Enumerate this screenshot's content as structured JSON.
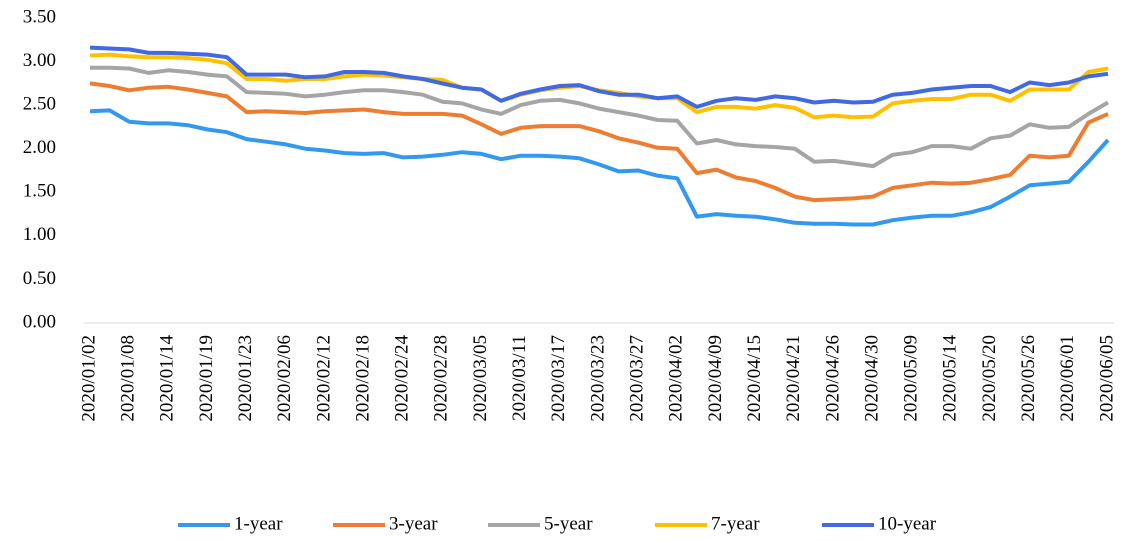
{
  "chart_data": {
    "type": "line",
    "categories": [
      "2020/01/02",
      null,
      "2020/01/08",
      null,
      "2020/01/14",
      null,
      "2020/01/19",
      null,
      "2020/01/23",
      null,
      "2020/02/06",
      null,
      "2020/02/12",
      null,
      "2020/02/18",
      null,
      "2020/02/24",
      null,
      "2020/02/28",
      null,
      "2020/03/05",
      null,
      "2020/03/11",
      null,
      "2020/03/17",
      null,
      "2020/03/23",
      null,
      "2020/03/27",
      null,
      "2020/04/02",
      null,
      "2020/04/09",
      null,
      "2020/04/15",
      null,
      "2020/04/21",
      null,
      "2020/04/26",
      null,
      "2020/04/30",
      null,
      "2020/05/09",
      null,
      "2020/05/14",
      null,
      "2020/05/20",
      null,
      "2020/05/26",
      null,
      "2020/06/01",
      null,
      "2020/06/05"
    ],
    "series": [
      {
        "name": "1-year",
        "color": "#3399f0",
        "values": [
          2.43,
          2.44,
          2.31,
          2.29,
          2.29,
          2.27,
          2.22,
          2.19,
          2.11,
          2.08,
          2.05,
          2.0,
          1.98,
          1.95,
          1.94,
          1.95,
          1.9,
          1.91,
          1.93,
          1.96,
          1.94,
          1.88,
          1.92,
          1.92,
          1.91,
          1.89,
          1.82,
          1.74,
          1.75,
          1.69,
          1.66,
          1.22,
          1.25,
          1.23,
          1.22,
          1.19,
          1.15,
          1.14,
          1.14,
          1.13,
          1.13,
          1.18,
          1.21,
          1.23,
          1.23,
          1.27,
          1.33,
          1.45,
          1.58,
          1.6,
          1.62,
          1.85,
          2.1
        ]
      },
      {
        "name": "3-year",
        "color": "#ed7d31",
        "values": [
          2.75,
          2.72,
          2.67,
          2.7,
          2.71,
          2.68,
          2.64,
          2.6,
          2.42,
          2.43,
          2.42,
          2.41,
          2.43,
          2.44,
          2.45,
          2.42,
          2.4,
          2.4,
          2.4,
          2.38,
          2.28,
          2.17,
          2.24,
          2.26,
          2.26,
          2.26,
          2.2,
          2.12,
          2.07,
          2.01,
          2.0,
          1.72,
          1.76,
          1.67,
          1.63,
          1.55,
          1.45,
          1.41,
          1.42,
          1.43,
          1.45,
          1.55,
          1.58,
          1.61,
          1.6,
          1.61,
          1.65,
          1.7,
          1.92,
          1.9,
          1.92,
          2.3,
          2.4
        ]
      },
      {
        "name": "5-year",
        "color": "#a5a5a5",
        "values": [
          2.93,
          2.93,
          2.92,
          2.87,
          2.9,
          2.88,
          2.85,
          2.83,
          2.65,
          2.64,
          2.63,
          2.6,
          2.62,
          2.65,
          2.67,
          2.67,
          2.65,
          2.62,
          2.54,
          2.52,
          2.45,
          2.4,
          2.5,
          2.55,
          2.56,
          2.52,
          2.46,
          2.42,
          2.38,
          2.33,
          2.32,
          2.06,
          2.1,
          2.05,
          2.03,
          2.02,
          2.0,
          1.85,
          1.86,
          1.83,
          1.8,
          1.93,
          1.96,
          2.03,
          2.03,
          2.0,
          2.12,
          2.15,
          2.28,
          2.24,
          2.25,
          2.4,
          2.53
        ]
      },
      {
        "name": "7-year",
        "color": "#ffc000",
        "values": [
          3.07,
          3.08,
          3.06,
          3.05,
          3.05,
          3.04,
          3.02,
          2.98,
          2.8,
          2.8,
          2.78,
          2.8,
          2.8,
          2.83,
          2.85,
          2.84,
          2.82,
          2.8,
          2.79,
          2.7,
          2.68,
          2.55,
          2.62,
          2.67,
          2.7,
          2.72,
          2.67,
          2.64,
          2.6,
          2.58,
          2.58,
          2.42,
          2.48,
          2.48,
          2.46,
          2.5,
          2.47,
          2.36,
          2.38,
          2.36,
          2.37,
          2.52,
          2.55,
          2.57,
          2.57,
          2.62,
          2.62,
          2.55,
          2.68,
          2.68,
          2.68,
          2.88,
          2.92
        ]
      },
      {
        "name": "10-year",
        "color": "#4169e1",
        "values": [
          3.16,
          3.15,
          3.14,
          3.1,
          3.1,
          3.09,
          3.08,
          3.05,
          2.85,
          2.85,
          2.85,
          2.82,
          2.83,
          2.88,
          2.88,
          2.87,
          2.83,
          2.8,
          2.75,
          2.7,
          2.68,
          2.55,
          2.63,
          2.68,
          2.72,
          2.73,
          2.66,
          2.62,
          2.62,
          2.58,
          2.6,
          2.48,
          2.55,
          2.58,
          2.56,
          2.6,
          2.58,
          2.53,
          2.55,
          2.53,
          2.54,
          2.62,
          2.64,
          2.68,
          2.7,
          2.72,
          2.72,
          2.65,
          2.76,
          2.73,
          2.76,
          2.83,
          2.86
        ]
      }
    ],
    "ylim": [
      0,
      3.5
    ],
    "yticks": [
      {
        "value": 0,
        "label": "0.00"
      },
      {
        "value": 0.5,
        "label": "0.50"
      },
      {
        "value": 1,
        "label": "1.00"
      },
      {
        "value": 1.5,
        "label": "1.50"
      },
      {
        "value": 2,
        "label": "2.00"
      },
      {
        "value": 2.5,
        "label": "2.50"
      },
      {
        "value": 3,
        "label": "3.00"
      },
      {
        "value": 3.5,
        "label": "3.50"
      }
    ],
    "grid": false,
    "legend": "bottom"
  }
}
